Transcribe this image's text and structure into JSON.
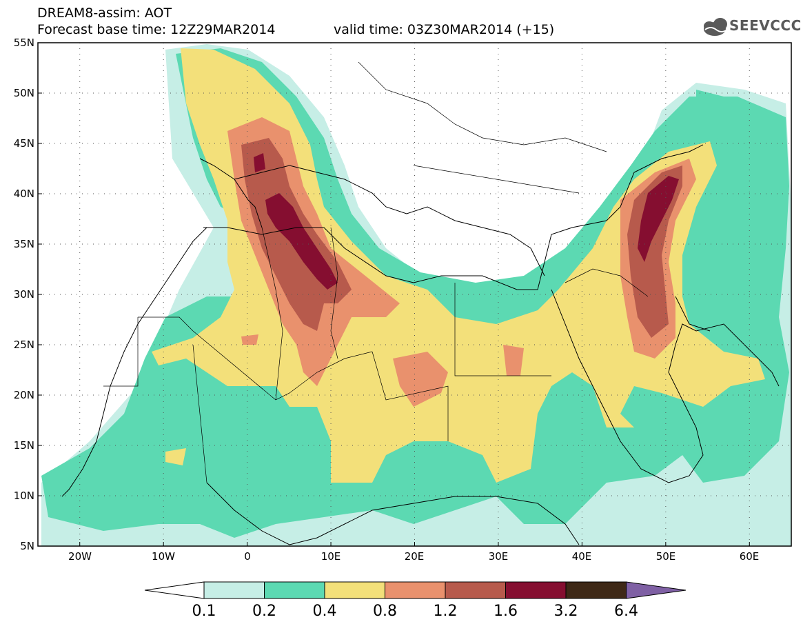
{
  "header": {
    "title": "DREAM8-assim: AOT",
    "base_time": "Forecast base time: 12Z29MAR2014",
    "valid_time": "valid time: 03Z30MAR2014 (+15)",
    "logo_text": "SEEVCCC"
  },
  "map": {
    "lon_range": [
      -25,
      65
    ],
    "lat_range": [
      5,
      55
    ],
    "lat_ticks": [
      "5N",
      "10N",
      "15N",
      "20N",
      "25N",
      "30N",
      "35N",
      "40N",
      "45N",
      "50N",
      "55N"
    ],
    "lon_ticks": [
      "20W",
      "10W",
      "0",
      "10E",
      "20E",
      "30E",
      "40E",
      "50E",
      "60E"
    ]
  },
  "colorbar": {
    "labels": [
      "0.1",
      "0.2",
      "0.4",
      "0.8",
      "1.2",
      "1.6",
      "3.2",
      "6.4"
    ],
    "colors": [
      "#ffffff",
      "#c6eee6",
      "#5cd9b2",
      "#f3e07a",
      "#e9916d",
      "#b75a4c",
      "#850e30",
      "#3e2816",
      "#7f60a4"
    ]
  }
}
